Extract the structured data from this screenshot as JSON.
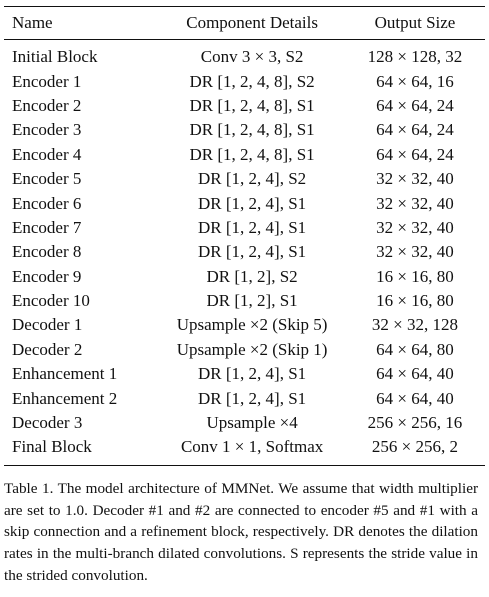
{
  "table": {
    "headers": [
      "Name",
      "Component Details",
      "Output Size"
    ],
    "rows": [
      [
        "Initial Block",
        "Conv 3 × 3, S2",
        "128 × 128, 32"
      ],
      [
        "Encoder 1",
        "DR [1, 2, 4, 8], S2",
        "64 × 64, 16"
      ],
      [
        "Encoder 2",
        "DR [1, 2, 4, 8], S1",
        "64 × 64, 24"
      ],
      [
        "Encoder 3",
        "DR [1, 2, 4, 8], S1",
        "64 × 64, 24"
      ],
      [
        "Encoder 4",
        "DR [1, 2, 4, 8], S1",
        "64 × 64, 24"
      ],
      [
        "Encoder 5",
        "DR [1, 2, 4], S2",
        "32 × 32, 40"
      ],
      [
        "Encoder 6",
        "DR [1, 2, 4], S1",
        "32 × 32, 40"
      ],
      [
        "Encoder 7",
        "DR [1, 2, 4], S1",
        "32 × 32, 40"
      ],
      [
        "Encoder 8",
        "DR [1, 2, 4], S1",
        "32 × 32, 40"
      ],
      [
        "Encoder 9",
        "DR [1, 2], S2",
        "16 × 16, 80"
      ],
      [
        "Encoder 10",
        "DR [1, 2], S1",
        "16 × 16, 80"
      ],
      [
        "Decoder 1",
        "Upsample ×2 (Skip 5)",
        "32 × 32, 128"
      ],
      [
        "Decoder 2",
        "Upsample ×2 (Skip 1)",
        "64 × 64, 80"
      ],
      [
        "Enhancement 1",
        "DR [1, 2, 4], S1",
        "64 × 64, 40"
      ],
      [
        "Enhancement 2",
        "DR [1, 2, 4], S1",
        "64 × 64, 40"
      ],
      [
        "Decoder 3",
        "Upsample ×4",
        "256 × 256, 16"
      ],
      [
        "Final Block",
        "Conv 1 × 1, Softmax",
        "256 × 256, 2"
      ]
    ]
  },
  "caption": "Table 1.  The model architecture of MMNet. We assume that width multiplier are set to 1.0.  Decoder #1 and #2 are connected to encoder #5 and #1 with a skip connection and a refinement block, respectively.  DR denotes the dilation rates in the multi-branch dilated convolutions.  S represents the stride value in the strided convolution."
}
